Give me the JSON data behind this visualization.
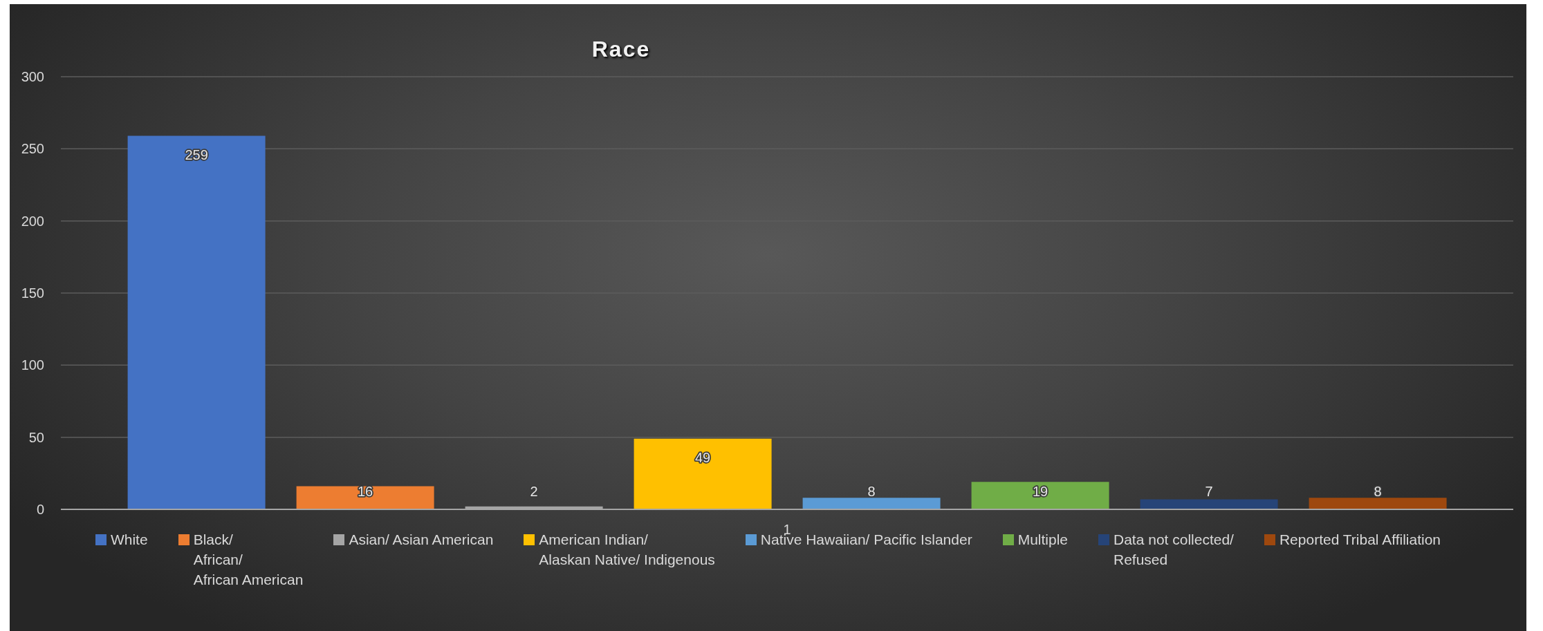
{
  "chart_data": {
    "type": "bar",
    "title": "Race",
    "categories": [
      "1"
    ],
    "series": [
      {
        "name": "White",
        "color": "#4472c4",
        "values": [
          259
        ]
      },
      {
        "name": "Black/\nAfrican/\nAfrican American",
        "color": "#ed7d31",
        "values": [
          16
        ]
      },
      {
        "name": "Asian/ Asian American",
        "color": "#a5a5a5",
        "values": [
          2
        ]
      },
      {
        "name": "American Indian/\nAlaskan Native/ Indigenous",
        "color": "#ffc000",
        "values": [
          49
        ]
      },
      {
        "name": "Native Hawaiian/ Pacific Islander",
        "color": "#5b9bd5",
        "values": [
          8
        ]
      },
      {
        "name": "Multiple",
        "color": "#70ad47",
        "values": [
          19
        ]
      },
      {
        "name": "Data not collected/\nRefused",
        "color": "#264478",
        "values": [
          7
        ]
      },
      {
        "name": "Reported Tribal Affiliation",
        "color": "#9e480e",
        "values": [
          8
        ]
      }
    ],
    "ylim": [
      0,
      300
    ],
    "yticks": [
      0,
      50,
      100,
      150,
      200,
      250,
      300
    ],
    "grid": "y",
    "legend": "bottom",
    "data_labels": true
  }
}
